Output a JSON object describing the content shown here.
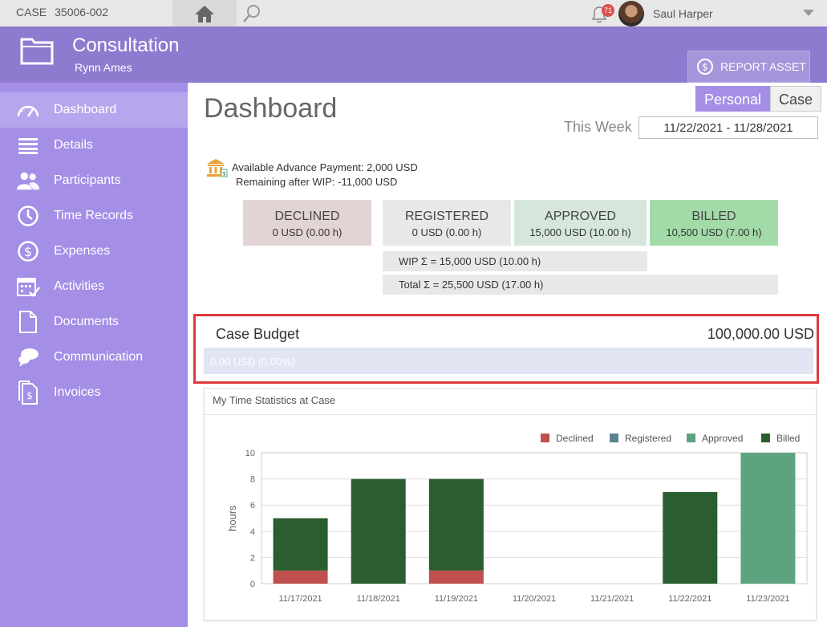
{
  "topbar": {
    "case_label": "CASE",
    "case_number": "35006-002",
    "notification_count": "71",
    "user_name": "Saul Harper"
  },
  "header": {
    "title": "Consultation",
    "subtitle": "Rynn Ames",
    "report_button": "REPORT ASSET"
  },
  "sidebar": {
    "items": [
      {
        "label": "Dashboard",
        "icon": "gauge-icon",
        "active": true
      },
      {
        "label": "Details",
        "icon": "list-icon"
      },
      {
        "label": "Participants",
        "icon": "people-icon"
      },
      {
        "label": "Time Records",
        "icon": "clock-icon"
      },
      {
        "label": "Expenses",
        "icon": "dollar-icon"
      },
      {
        "label": "Activities",
        "icon": "calendar-check-icon"
      },
      {
        "label": "Documents",
        "icon": "document-icon"
      },
      {
        "label": "Communication",
        "icon": "chat-icon"
      },
      {
        "label": "Invoices",
        "icon": "invoice-icon"
      }
    ]
  },
  "main": {
    "title": "Dashboard",
    "toggle": {
      "personal": "Personal",
      "case": "Case",
      "selected": "Personal"
    },
    "week_label": "This Week",
    "week_range": "11/22/2021 - 11/28/2021",
    "advance_line1": "Available Advance Payment: 2,000 USD",
    "advance_line2": "Remaining after WIP: -11,000 USD",
    "statuses": [
      {
        "title": "DECLINED",
        "value": "0 USD (0.00 h)",
        "color": "#e2d4d4"
      },
      {
        "title": "REGISTERED",
        "value": "0 USD (0.00 h)",
        "color": "#e8e8e8"
      },
      {
        "title": "APPROVED",
        "value": "15,000 USD (10.00 h)",
        "color": "#d6e6dc"
      },
      {
        "title": "BILLED",
        "value": "10,500 USD (7.00 h)",
        "color": "#a3dba8"
      }
    ],
    "wip": "WIP Σ = 15,000 USD (10.00 h)",
    "total": "Total Σ = 25,500 USD (17.00 h)"
  },
  "budget": {
    "label": "Case Budget",
    "total": "100,000.00 USD",
    "used": "0.00 USD (0.00%)",
    "used_fraction": 0
  },
  "chart_panel_title": "My Time Statistics at Case",
  "chart_data": {
    "type": "bar",
    "stacked": true,
    "categories": [
      "11/17/2021",
      "11/18/2021",
      "11/19/2021",
      "11/20/2021",
      "11/21/2021",
      "11/22/2021",
      "11/23/2021"
    ],
    "series": [
      {
        "name": "Declined",
        "color": "#c0504d",
        "values": [
          1,
          0,
          1,
          0,
          0,
          0,
          0
        ]
      },
      {
        "name": "Registered",
        "color": "#5b8290",
        "values": [
          0,
          0,
          0,
          0,
          0,
          0,
          0
        ]
      },
      {
        "name": "Approved",
        "color": "#5ea37f",
        "values": [
          0,
          0,
          0,
          0,
          0,
          0,
          10
        ]
      },
      {
        "name": "Billed",
        "color": "#2a5d2f",
        "values": [
          4,
          8,
          7,
          0,
          0,
          7,
          0
        ]
      }
    ],
    "ylabel": "hours",
    "ylim": [
      0,
      10
    ],
    "yticks": [
      0,
      2,
      4,
      6,
      8,
      10
    ],
    "legend": "top-right",
    "grid": true
  }
}
